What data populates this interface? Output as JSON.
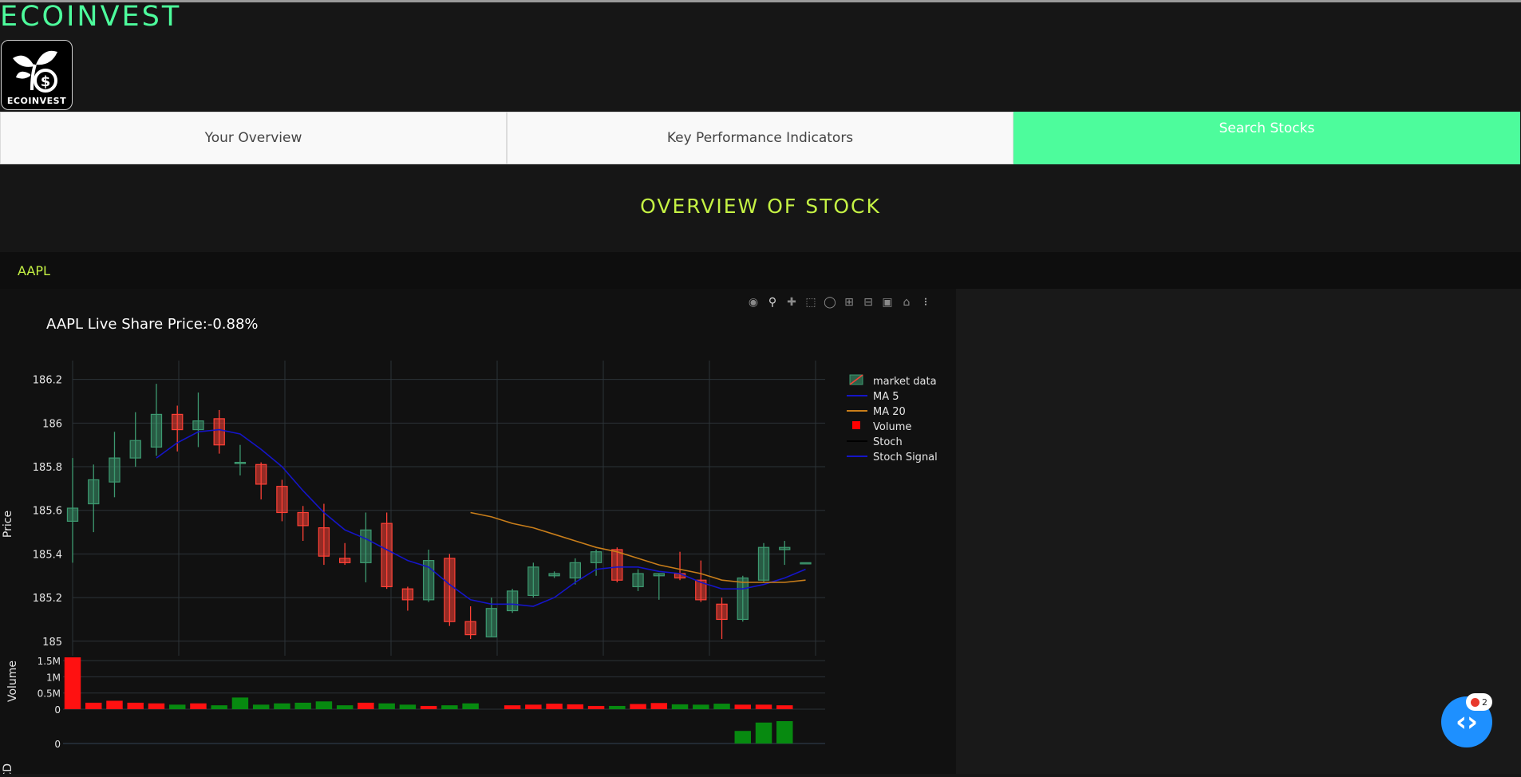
{
  "app": {
    "brand": "ECOINVEST",
    "logo_text": "ECOINVEST"
  },
  "tabs": [
    {
      "label": "Your Overview",
      "active": false
    },
    {
      "label": "Key Performance Indicators",
      "active": false
    },
    {
      "label": "Search Stocks",
      "active": true
    }
  ],
  "page": {
    "heading": "OVERVIEW OF STOCK"
  },
  "search": {
    "value": "AAPL"
  },
  "modebar": [
    "camera-icon",
    "zoom-icon",
    "pan-icon",
    "box-select-icon",
    "lasso-icon",
    "zoom-in-icon",
    "zoom-out-icon",
    "autoscale-icon",
    "reset-axes-icon",
    "plotly-logo-icon"
  ],
  "fab": {
    "badge_count": "2"
  },
  "chart_data": {
    "type": "candlestick",
    "title": "AAPL Live Share Price:-0.88%",
    "ylabel": "Price",
    "ylim": [
      184.97,
      186.25
    ],
    "yticks": [
      "186.2",
      "186",
      "185.8",
      "185.6",
      "185.4",
      "185.2",
      "185"
    ],
    "legend": {
      "placement": "right",
      "entries": [
        {
          "name": "market data",
          "color": "#3d9970"
        },
        {
          "name": "MA 5",
          "color": "#1515c8"
        },
        {
          "name": "MA 20",
          "color": "#c97e1a"
        },
        {
          "name": "Volume",
          "color": "#ff0000"
        },
        {
          "name": "Stoch",
          "color": "#000000"
        },
        {
          "name": "Stoch Signal",
          "color": "#1515c8"
        }
      ]
    },
    "candles": [
      {
        "o": 185.55,
        "h": 185.84,
        "l": 185.36,
        "c": 185.61
      },
      {
        "o": 185.63,
        "h": 185.81,
        "l": 185.5,
        "c": 185.74
      },
      {
        "o": 185.73,
        "h": 185.96,
        "l": 185.66,
        "c": 185.84
      },
      {
        "o": 185.84,
        "h": 186.05,
        "l": 185.8,
        "c": 185.92
      },
      {
        "o": 185.89,
        "h": 186.18,
        "l": 185.85,
        "c": 186.04
      },
      {
        "o": 186.04,
        "h": 186.08,
        "l": 185.87,
        "c": 185.97
      },
      {
        "o": 185.97,
        "h": 186.14,
        "l": 185.89,
        "c": 186.01
      },
      {
        "o": 186.02,
        "h": 186.06,
        "l": 185.86,
        "c": 185.9
      },
      {
        "o": 185.82,
        "h": 185.9,
        "l": 185.76,
        "c": 185.82
      },
      {
        "o": 185.81,
        "h": 185.82,
        "l": 185.65,
        "c": 185.72
      },
      {
        "o": 185.71,
        "h": 185.74,
        "l": 185.55,
        "c": 185.59
      },
      {
        "o": 185.59,
        "h": 185.62,
        "l": 185.46,
        "c": 185.53
      },
      {
        "o": 185.52,
        "h": 185.63,
        "l": 185.35,
        "c": 185.39
      },
      {
        "o": 185.38,
        "h": 185.45,
        "l": 185.35,
        "c": 185.36
      },
      {
        "o": 185.36,
        "h": 185.59,
        "l": 185.27,
        "c": 185.51
      },
      {
        "o": 185.54,
        "h": 185.59,
        "l": 185.24,
        "c": 185.25
      },
      {
        "o": 185.24,
        "h": 185.25,
        "l": 185.14,
        "c": 185.19
      },
      {
        "o": 185.19,
        "h": 185.42,
        "l": 185.18,
        "c": 185.37
      },
      {
        "o": 185.38,
        "h": 185.4,
        "l": 185.07,
        "c": 185.09
      },
      {
        "o": 185.09,
        "h": 185.16,
        "l": 185.01,
        "c": 185.03
      },
      {
        "o": 185.02,
        "h": 185.2,
        "l": 185.02,
        "c": 185.15
      },
      {
        "o": 185.14,
        "h": 185.24,
        "l": 185.13,
        "c": 185.23
      },
      {
        "o": 185.21,
        "h": 185.36,
        "l": 185.2,
        "c": 185.34
      },
      {
        "o": 185.3,
        "h": 185.32,
        "l": 185.29,
        "c": 185.31
      },
      {
        "o": 185.29,
        "h": 185.38,
        "l": 185.26,
        "c": 185.36
      },
      {
        "o": 185.36,
        "h": 185.42,
        "l": 185.3,
        "c": 185.41
      },
      {
        "o": 185.42,
        "h": 185.43,
        "l": 185.27,
        "c": 185.28
      },
      {
        "o": 185.25,
        "h": 185.33,
        "l": 185.23,
        "c": 185.31
      },
      {
        "o": 185.3,
        "h": 185.31,
        "l": 185.19,
        "c": 185.31
      },
      {
        "o": 185.31,
        "h": 185.41,
        "l": 185.28,
        "c": 185.29
      },
      {
        "o": 185.28,
        "h": 185.37,
        "l": 185.18,
        "c": 185.19
      },
      {
        "o": 185.17,
        "h": 185.2,
        "l": 185.01,
        "c": 185.1
      },
      {
        "o": 185.1,
        "h": 185.3,
        "l": 185.09,
        "c": 185.29
      },
      {
        "o": 185.28,
        "h": 185.45,
        "l": 185.27,
        "c": 185.43
      },
      {
        "o": 185.42,
        "h": 185.46,
        "l": 185.35,
        "c": 185.43
      },
      {
        "o": 185.36,
        "h": 185.36,
        "l": 185.36,
        "c": 185.36
      }
    ],
    "ma5": [
      [
        4,
        185.84
      ],
      [
        5,
        185.91
      ],
      [
        6,
        185.96
      ],
      [
        7,
        185.97
      ],
      [
        8,
        185.95
      ],
      [
        9,
        185.88
      ],
      [
        10,
        185.8
      ],
      [
        11,
        185.69
      ],
      [
        12,
        185.59
      ],
      [
        13,
        185.51
      ],
      [
        14,
        185.47
      ],
      [
        15,
        185.42
      ],
      [
        16,
        185.37
      ],
      [
        17,
        185.34
      ],
      [
        18,
        185.26
      ],
      [
        19,
        185.19
      ],
      [
        20,
        185.17
      ],
      [
        21,
        185.17
      ],
      [
        22,
        185.16
      ],
      [
        23,
        185.2
      ],
      [
        24,
        185.27
      ],
      [
        25,
        185.33
      ],
      [
        26,
        185.34
      ],
      [
        27,
        185.34
      ],
      [
        28,
        185.32
      ],
      [
        29,
        185.31
      ],
      [
        30,
        185.27
      ],
      [
        31,
        185.24
      ],
      [
        32,
        185.24
      ],
      [
        33,
        185.26
      ],
      [
        34,
        185.29
      ],
      [
        35,
        185.33
      ]
    ],
    "ma20": [
      [
        19,
        185.59
      ],
      [
        20,
        185.57
      ],
      [
        21,
        185.54
      ],
      [
        22,
        185.52
      ],
      [
        23,
        185.49
      ],
      [
        24,
        185.46
      ],
      [
        25,
        185.43
      ],
      [
        26,
        185.41
      ],
      [
        27,
        185.38
      ],
      [
        28,
        185.35
      ],
      [
        29,
        185.33
      ],
      [
        30,
        185.31
      ],
      [
        31,
        185.28
      ],
      [
        32,
        185.27
      ],
      [
        33,
        185.27
      ],
      [
        34,
        185.27
      ],
      [
        35,
        185.28
      ]
    ],
    "volume": {
      "ylabel": "Volume",
      "yticks": [
        "1.5M",
        "1M",
        "0.5M",
        "0"
      ],
      "ymax": 1.6,
      "values_m": [
        1.6,
        0.2,
        0.26,
        0.2,
        0.18,
        0.14,
        0.18,
        0.12,
        0.36,
        0.14,
        0.18,
        0.2,
        0.24,
        0.12,
        0.2,
        0.18,
        0.14,
        0.1,
        0.12,
        0.18,
        0,
        0.12,
        0.14,
        0.17,
        0.15,
        0.1,
        0.1,
        0.16,
        0.19,
        0.15,
        0.14,
        0.17,
        0.14,
        0.14,
        0.12,
        0
      ],
      "up": [
        false,
        false,
        false,
        false,
        false,
        true,
        false,
        true,
        true,
        true,
        true,
        true,
        true,
        true,
        false,
        true,
        true,
        false,
        true,
        true,
        true,
        false,
        false,
        false,
        false,
        false,
        true,
        false,
        false,
        true,
        true,
        true,
        false,
        false,
        false,
        false
      ]
    },
    "macd": {
      "ylabel": "MACD",
      "yticks": [
        "0"
      ],
      "bars": [
        0,
        0,
        0,
        0,
        0,
        0,
        0,
        0,
        0,
        0,
        0,
        0,
        0,
        0,
        0,
        0,
        0,
        0,
        0,
        0,
        0,
        0,
        0,
        0,
        0,
        0,
        0,
        0,
        0,
        0,
        0,
        0,
        0.45,
        0.75,
        0.8,
        0
      ]
    }
  }
}
